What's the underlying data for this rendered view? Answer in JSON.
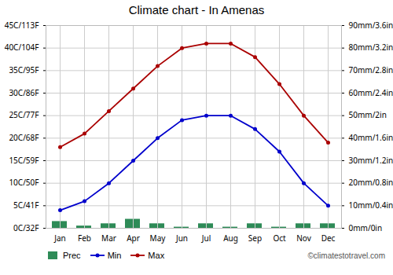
{
  "chart_data": {
    "type": "bar_line",
    "title": "Climate chart - In Amenas",
    "categories": [
      "Jan",
      "Feb",
      "Mar",
      "Apr",
      "May",
      "Jun",
      "Jul",
      "Aug",
      "Sep",
      "Oct",
      "Nov",
      "Dec"
    ],
    "series": [
      {
        "name": "Prec",
        "type": "bar",
        "axis": "y2",
        "color": "#2e8b57",
        "values": [
          3,
          1,
          2,
          4,
          2,
          0.5,
          2,
          0.5,
          2,
          0.5,
          2,
          2
        ]
      },
      {
        "name": "Min",
        "type": "line",
        "color": "#0000cc",
        "marker": "circle",
        "values": [
          4,
          6,
          10,
          15,
          20,
          24,
          25,
          25,
          22,
          17,
          10,
          5
        ]
      },
      {
        "name": "Max",
        "type": "line",
        "color": "#aa0000",
        "marker": "circle",
        "values": [
          18,
          21,
          26,
          31,
          36,
          40,
          41,
          41,
          38,
          32,
          25,
          19
        ]
      }
    ],
    "ylim": [
      0,
      45
    ],
    "yticks": [
      {
        "value": 0,
        "label": "0C/32F"
      },
      {
        "value": 5,
        "label": "5C/41F"
      },
      {
        "value": 10,
        "label": "10C/50F"
      },
      {
        "value": 15,
        "label": "15C/59F"
      },
      {
        "value": 20,
        "label": "20C/68F"
      },
      {
        "value": 25,
        "label": "25C/77F"
      },
      {
        "value": 30,
        "label": "30C/86F"
      },
      {
        "value": 35,
        "label": "35C/95F"
      },
      {
        "value": 40,
        "label": "40C/104F"
      },
      {
        "value": 45,
        "label": "45C/113F"
      }
    ],
    "y2lim": [
      0,
      90
    ],
    "y2ticks": [
      {
        "value": 0,
        "label": "0mm/0in"
      },
      {
        "value": 10,
        "label": "10mm/0.4in"
      },
      {
        "value": 20,
        "label": "20mm/0.8in"
      },
      {
        "value": 30,
        "label": "30mm/1.2in"
      },
      {
        "value": 40,
        "label": "40mm/1.6in"
      },
      {
        "value": 50,
        "label": "50mm/2in"
      },
      {
        "value": 60,
        "label": "60mm/2.4in"
      },
      {
        "value": 70,
        "label": "70mm/2.8in"
      },
      {
        "value": 80,
        "label": "80mm/3.2in"
      },
      {
        "value": 90,
        "label": "90mm/3.6in"
      }
    ],
    "grid": true,
    "legend": "lower left",
    "annotations": [
      "©climatestotravel.com"
    ]
  }
}
